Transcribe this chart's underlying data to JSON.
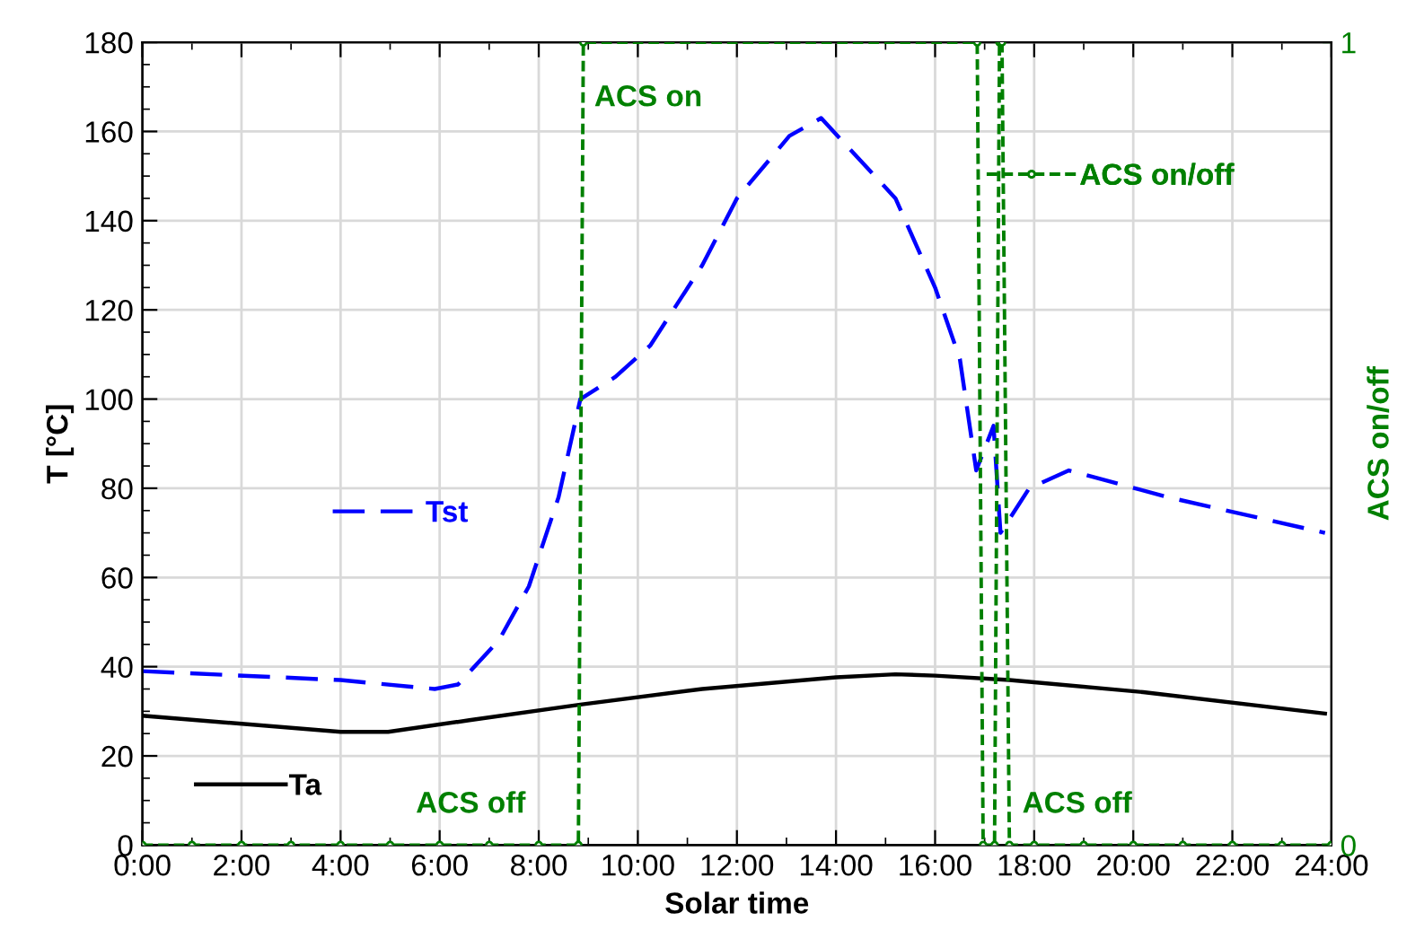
{
  "chart_data": {
    "type": "line",
    "xlabel": "Solar time",
    "ylabel": "T [°C]",
    "y2label": "ACS on/off",
    "xlim": [
      0,
      24
    ],
    "xticks": [
      {
        "value": 0,
        "label": "0:00"
      },
      {
        "value": 2,
        "label": "2:00"
      },
      {
        "value": 4,
        "label": "4:00"
      },
      {
        "value": 6,
        "label": "6:00"
      },
      {
        "value": 8,
        "label": "8:00"
      },
      {
        "value": 10,
        "label": "10:00"
      },
      {
        "value": 12,
        "label": "12:00"
      },
      {
        "value": 14,
        "label": "14:00"
      },
      {
        "value": 16,
        "label": "16:00"
      },
      {
        "value": 18,
        "label": "18:00"
      },
      {
        "value": 20,
        "label": "20:00"
      },
      {
        "value": 22,
        "label": "22:00"
      },
      {
        "value": 24,
        "label": "24:00"
      }
    ],
    "ylim": [
      0,
      180
    ],
    "yticks": [
      0,
      20,
      40,
      60,
      80,
      100,
      120,
      140,
      160,
      180
    ],
    "y2lim": [
      0,
      1
    ],
    "y2ticks": [
      0,
      1
    ],
    "grid": true,
    "legend": "bottom left",
    "series": [
      {
        "name": "Tst",
        "color": "#0000ff",
        "line_style": "dashed",
        "marker": "none",
        "x": [
          0,
          4.0,
          5.9,
          6.37,
          7.2,
          7.8,
          8.4,
          8.84,
          9.55,
          10.25,
          11.3,
          12.0,
          13.06,
          13.7,
          15.2,
          16.0,
          16.5,
          16.83,
          17.18,
          17.32,
          17.9,
          18.7,
          20.7,
          23.87
        ],
        "values": [
          39,
          37,
          35,
          36,
          46,
          58,
          78,
          100,
          105,
          112,
          130,
          145,
          159,
          163,
          145,
          125,
          109,
          84,
          94,
          70,
          80,
          84,
          78,
          70
        ]
      },
      {
        "name": "Ta",
        "color": "#000000",
        "line_style": "solid",
        "marker": "none",
        "x": [
          0,
          4.0,
          4.96,
          6.6,
          8.84,
          11.3,
          14.0,
          15.2,
          16.0,
          17.5,
          20.2,
          23.87
        ],
        "values": [
          29,
          25.4,
          25.4,
          28,
          31.5,
          35,
          37.6,
          38.3,
          38,
          37,
          34.3,
          29.5
        ]
      },
      {
        "name": "ACS on/off",
        "color": "#008000",
        "line_style": "dashed",
        "marker": "circle",
        "axis": "y2",
        "x": [
          0,
          1,
          2,
          3,
          4,
          5,
          6,
          7,
          8,
          8.8,
          8.9,
          16.85,
          16.97,
          17.2,
          17.3,
          17.35,
          17.5,
          18,
          19,
          20,
          21,
          22,
          23,
          24
        ],
        "values": [
          0,
          0,
          0,
          0,
          0,
          0,
          0,
          0,
          0,
          0,
          1,
          1,
          0,
          0,
          1,
          1,
          0,
          0,
          0,
          0,
          0,
          0,
          0,
          0
        ]
      }
    ],
    "annotations": [
      "ACS on",
      "ACS off",
      "ACS off"
    ]
  }
}
